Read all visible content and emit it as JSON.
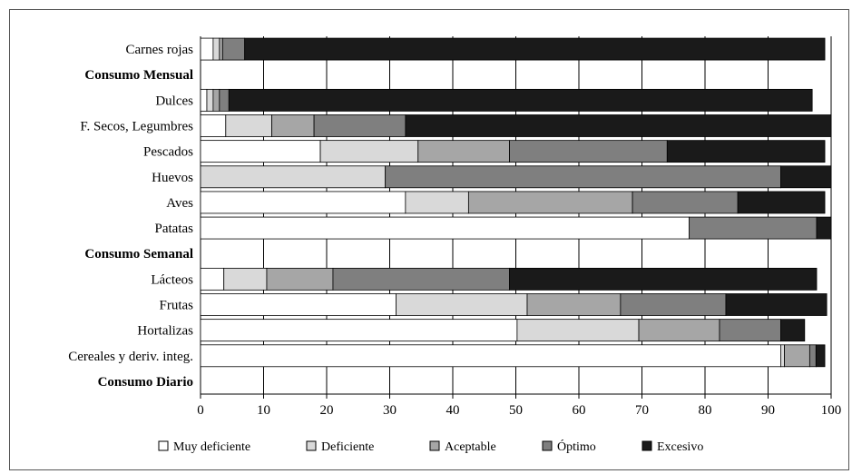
{
  "chart_data": {
    "type": "bar",
    "orientation": "horizontal",
    "stacked": true,
    "xlim": [
      0,
      100
    ],
    "xticks": [
      0,
      10,
      20,
      30,
      40,
      50,
      60,
      70,
      80,
      90,
      100
    ],
    "grid": "vertical",
    "legend_position": "bottom",
    "categories": [
      {
        "label": "Carnes rojas",
        "bold": false,
        "values": [
          2,
          1,
          0.5,
          3.5,
          92
        ]
      },
      {
        "label": "Consumo Mensual",
        "bold": true,
        "values": null
      },
      {
        "label": "Dulces",
        "bold": false,
        "values": [
          1,
          1,
          1,
          1.5,
          92.5
        ]
      },
      {
        "label": "F. Secos, Legumbres",
        "bold": false,
        "values": [
          4,
          7.3,
          6.7,
          14.5,
          67.5
        ]
      },
      {
        "label": "Pescados",
        "bold": false,
        "values": [
          19,
          15.5,
          14.5,
          25,
          25
        ]
      },
      {
        "label": "Huevos",
        "bold": false,
        "values": [
          0,
          29.3,
          0,
          62.7,
          8
        ]
      },
      {
        "label": "Aves",
        "bold": false,
        "values": [
          32.5,
          10,
          26,
          16.7,
          13.8
        ]
      },
      {
        "label": "Patatas",
        "bold": false,
        "values": [
          77.5,
          0,
          0,
          20.2,
          2.3
        ]
      },
      {
        "label": "Consumo Semanal",
        "bold": true,
        "values": null
      },
      {
        "label": "Lácteos",
        "bold": false,
        "values": [
          3.7,
          6.8,
          10.5,
          28,
          48.7
        ]
      },
      {
        "label": "Frutas",
        "bold": false,
        "values": [
          31,
          20.8,
          14.8,
          16.7,
          16
        ]
      },
      {
        "label": "Hortalizas",
        "bold": false,
        "values": [
          50.2,
          19.3,
          12.8,
          9.7,
          3.8
        ]
      },
      {
        "label": "Cereales y deriv. integ.",
        "bold": false,
        "values": [
          92,
          0.6,
          4,
          1,
          1.4
        ]
      },
      {
        "label": "Consumo Diario",
        "bold": true,
        "values": null
      }
    ],
    "series": [
      {
        "name": "Muy deficiente",
        "color": "#ffffff"
      },
      {
        "name": "Deficiente",
        "color": "#d9d9d9"
      },
      {
        "name": "Aceptable",
        "color": "#a6a6a6"
      },
      {
        "name": "Óptimo",
        "color": "#7f7f7f"
      },
      {
        "name": "Excesivo",
        "color": "#1a1a1a"
      }
    ]
  }
}
